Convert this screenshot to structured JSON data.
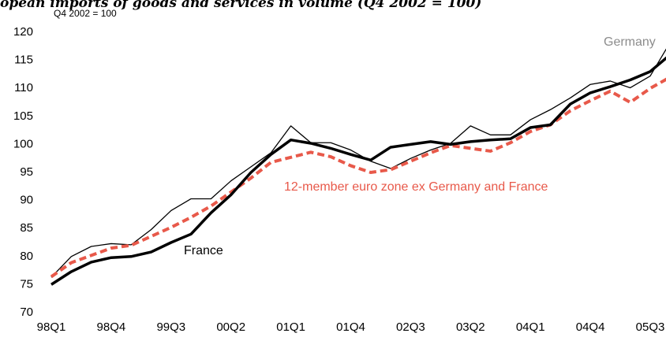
{
  "chart_data": {
    "type": "line",
    "title": "opean imports of goods and services in volume (Q4 2002 = 100)",
    "subtitle": "Q4  2002 = 100",
    "categories": [
      "98Q1",
      null,
      null,
      "98Q4",
      null,
      null,
      "99Q3",
      null,
      null,
      "00Q2",
      null,
      null,
      "01Q1",
      null,
      null,
      "01Q4",
      null,
      null,
      "02Q3",
      null,
      null,
      "03Q2",
      null,
      null,
      "04Q1",
      null,
      null,
      "04Q4",
      null,
      null,
      "05Q3",
      null
    ],
    "series": [
      {
        "name": "Germany",
        "color": "#000000",
        "width": 1.3,
        "dashed": false,
        "label_color": "#8c8c8c",
        "values": [
          76.3,
          80,
          81.8,
          82.3,
          82.1,
          84.8,
          88.2,
          90.3,
          90.3,
          93.5,
          96,
          98.5,
          103.3,
          100.3,
          100.3,
          99,
          97,
          95.7,
          97.5,
          99,
          100.2,
          103.3,
          101.7,
          101.7,
          104.4,
          106.2,
          108.3,
          110.7,
          111.3,
          110.1,
          112.2,
          118.2
        ]
      },
      {
        "name": "12-member euro zone ex Germany and France",
        "color": "#e8594a",
        "width": 4,
        "dashed": true,
        "label_color": "#e8594a",
        "values": [
          76.4,
          78.9,
          80.2,
          81.5,
          82,
          83.6,
          85.2,
          87,
          89,
          91.5,
          94,
          96.8,
          97.7,
          98.6,
          97.8,
          96.2,
          95,
          95.5,
          97,
          98.5,
          99.8,
          99.3,
          98.8,
          100.3,
          102.3,
          103.5,
          106,
          107.8,
          109.5,
          107.5,
          110,
          112
        ]
      },
      {
        "name": "France",
        "color": "#000000",
        "width": 3.5,
        "dashed": false,
        "label_color": "#000000",
        "values": [
          75,
          77.3,
          79,
          79.8,
          80,
          80.8,
          82.5,
          84,
          87.8,
          91,
          95,
          98.2,
          100.8,
          100.2,
          99.3,
          98.2,
          97.2,
          99.5,
          100,
          100.5,
          100,
          100.5,
          100.8,
          101,
          103,
          103.5,
          107.2,
          109.2,
          110.3,
          111.5,
          113,
          116
        ]
      }
    ],
    "ylim": [
      70,
      120
    ],
    "yticks": [
      70,
      75,
      80,
      85,
      90,
      95,
      100,
      105,
      110,
      115,
      120
    ],
    "grid": false
  }
}
